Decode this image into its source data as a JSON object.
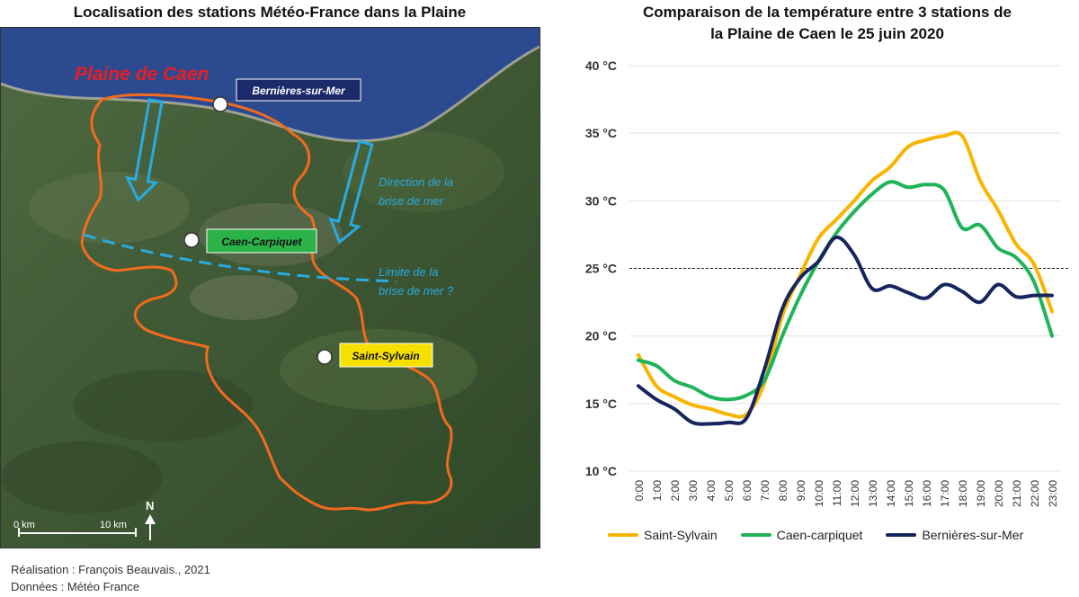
{
  "map": {
    "title": "Localisation des stations Météo-France dans la Plaine",
    "region_label": "Plaine de Caen",
    "stations": [
      {
        "id": "bernieres",
        "label": "Bernières-sur-Mer",
        "color": "#1b2a6b",
        "text_color": "#ffffff"
      },
      {
        "id": "caen",
        "label": "Caen-Carpiquet",
        "color": "#2bb34a",
        "text_color": "#111111"
      },
      {
        "id": "saint-sylvain",
        "label": "Saint-Sylvain",
        "color": "#f5e000",
        "text_color": "#111111"
      }
    ],
    "annotation_breeze_direction": [
      "Direction de la",
      "brise de mer"
    ],
    "annotation_breeze_limit": [
      "Limite de la",
      "brise de mer ?"
    ],
    "scale_start": "0 km",
    "scale_end": "10 km",
    "north": "N",
    "colors": {
      "outline": "#f26b1d",
      "arrow": "#29aae1",
      "sea": "#2c4a8f",
      "land": "#3f5a35",
      "region_label": "#e81e25"
    }
  },
  "credits": {
    "author": "Réalisation : François Beauvais., 2021",
    "data": "Données : Météo France"
  },
  "chart_data": {
    "type": "line",
    "title_lines": [
      "Comparaison de la température entre 3 stations de",
      "la Plaine de Caen le 25 juin 2020"
    ],
    "categories": [
      "0:00",
      "1:00",
      "2:00",
      "3:00",
      "4:00",
      "5:00",
      "6:00",
      "7:00",
      "8:00",
      "9:00",
      "10:00",
      "11:00",
      "12:00",
      "13:00",
      "14:00",
      "15:00",
      "16:00",
      "17:00",
      "18:00",
      "19:00",
      "20:00",
      "21:00",
      "22:00",
      "23:00"
    ],
    "y_ticks": [
      "10 °C",
      "15 °C",
      "20 °C",
      "25 °C",
      "30 °C",
      "35 °C",
      "40 °C"
    ],
    "ylim": [
      10,
      40
    ],
    "reference_line": 25,
    "grid": true,
    "legend_position": "bottom",
    "series": [
      {
        "name": "Saint-Sylvain",
        "color": "#f7b500",
        "values": [
          18.6,
          16.3,
          15.5,
          14.9,
          14.6,
          14.2,
          14.2,
          16.5,
          21.5,
          24.5,
          27.2,
          28.6,
          30.0,
          31.5,
          32.5,
          34.0,
          34.5,
          34.8,
          34.8,
          31.5,
          29.3,
          26.8,
          25.3,
          21.8
        ]
      },
      {
        "name": "Caen-carpiquet",
        "color": "#1fb45a",
        "values": [
          18.2,
          17.8,
          16.7,
          16.2,
          15.5,
          15.3,
          15.6,
          16.7,
          20.0,
          23.0,
          25.5,
          27.6,
          29.2,
          30.5,
          31.4,
          31.0,
          31.2,
          30.8,
          28.0,
          28.2,
          26.5,
          25.8,
          24.0,
          20.0
        ]
      },
      {
        "name": "Bernières-sur-Mer",
        "color": "#17255e",
        "values": [
          16.3,
          15.3,
          14.6,
          13.6,
          13.5,
          13.6,
          13.9,
          17.5,
          22.0,
          24.3,
          25.5,
          27.3,
          26.0,
          23.5,
          23.7,
          23.2,
          22.8,
          23.8,
          23.3,
          22.5,
          23.8,
          22.9,
          23.0,
          23.0
        ]
      }
    ]
  }
}
